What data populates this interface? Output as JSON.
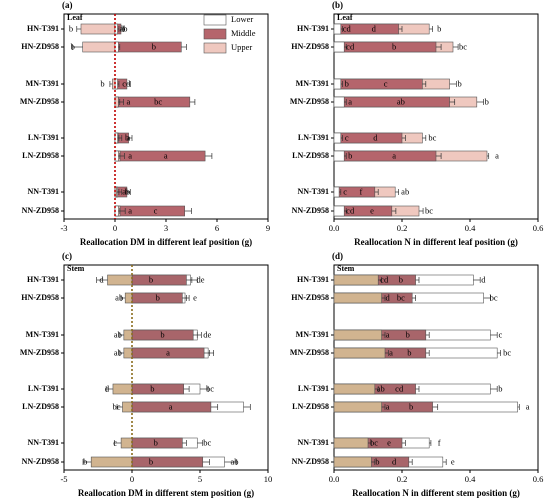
{
  "chart_data": [
    {
      "type": "bar",
      "panel_label": "(a)",
      "corner_label": "Leaf",
      "xlabel": "Reallocation DM in different leaf position (g)",
      "ylabel": "",
      "xlim": [
        -3,
        9
      ],
      "xticks": [
        -3,
        0,
        3,
        6,
        9
      ],
      "categories": [
        "HN-T391",
        "HN-ZD958",
        "MN-T391",
        "MN-ZD958",
        "LN-T391",
        "LN-ZD958",
        "NN-T391",
        "NN-ZD958"
      ],
      "series": [
        {
          "name": "Lower",
          "values": [
            0.15,
            0.2,
            0.15,
            0.2,
            0.15,
            0.2,
            0.15,
            0.2
          ],
          "errors": [
            0.08,
            0.08,
            0.08,
            0.08,
            0.08,
            0.08,
            0.08,
            0.08
          ],
          "letters": [
            "ab",
            "",
            "",
            "",
            "",
            "",
            "",
            ""
          ]
        },
        {
          "name": "Middle",
          "values": [
            0.35,
            3.9,
            0.7,
            4.4,
            0.8,
            5.3,
            0.7,
            4.1
          ],
          "errors": [
            0.15,
            0.3,
            0.2,
            0.3,
            0.2,
            0.4,
            0.2,
            0.4
          ],
          "letters": [
            "b",
            "b",
            "cd",
            "bc",
            "b",
            "a",
            "ab",
            "c"
          ]
        },
        {
          "name": "Upper",
          "values": [
            -2.0,
            -1.9,
            -0.15,
            0.2,
            0.2,
            0.3,
            0.1,
            0.3
          ],
          "errors": [
            0.25,
            0.6,
            0.15,
            0.3,
            0.2,
            0.25,
            0.3,
            0.3
          ],
          "letters": [
            "b",
            "b",
            "b",
            "a",
            "a",
            "a",
            "b",
            "a"
          ]
        }
      ],
      "bar_totals": [
        0.35,
        3.9,
        0.7,
        4.4,
        0.8,
        5.3,
        0.7,
        4.1
      ],
      "total_errors": [
        0.15,
        0.3,
        0.2,
        0.3,
        0.2,
        0.4,
        0.2,
        0.4
      ],
      "total_letters": [
        "b",
        "b",
        "b",
        "bc",
        "b",
        "a",
        "ab",
        "b"
      ],
      "legend": {
        "placement": "top-right",
        "items": [
          "Lower",
          "Middle",
          "Upper"
        ]
      }
    },
    {
      "type": "bar",
      "panel_label": "(b)",
      "corner_label": "Leaf",
      "xlabel": "Reallocation N in different leaf position (g)",
      "ylabel": "",
      "xlim": [
        0,
        0.6
      ],
      "xticks": [
        0.0,
        0.2,
        0.4,
        0.6
      ],
      "categories": [
        "HN-T391",
        "HN-ZD958",
        "MN-T391",
        "MN-ZD958",
        "LN-T391",
        "LN-ZD958",
        "NN-T391",
        "NN-ZD958"
      ],
      "series": [
        {
          "name": "Lower",
          "values": [
            0.02,
            0.03,
            0.02,
            0.03,
            0.02,
            0.03,
            0.015,
            0.03
          ],
          "errors": [
            0.005,
            0.006,
            0.005,
            0.006,
            0.005,
            0.006,
            0.005,
            0.006
          ],
          "letters": [
            "cd",
            "cd",
            "b",
            "a",
            "c",
            "b",
            "c",
            "cd"
          ]
        },
        {
          "name": "Middle",
          "values": [
            0.19,
            0.3,
            0.26,
            0.34,
            0.2,
            0.3,
            0.12,
            0.17
          ],
          "errors": [
            0.01,
            0.015,
            0.01,
            0.015,
            0.01,
            0.015,
            0.01,
            0.012
          ],
          "letters": [
            "d",
            "b",
            "c",
            "ab",
            "d",
            "a",
            "f",
            "e"
          ]
        },
        {
          "name": "Upper",
          "values": [
            0.28,
            0.35,
            0.34,
            0.42,
            0.26,
            0.45,
            0.18,
            0.25
          ],
          "errors": [
            0.01,
            0.015,
            0.02,
            0.02,
            0.01,
            0.005,
            0.01,
            0.012
          ],
          "letters": [
            "b",
            "bc",
            "b",
            "b",
            "bc",
            "a",
            "ab",
            "bc"
          ]
        }
      ],
      "legend": {
        "placement": "none",
        "items": []
      }
    },
    {
      "type": "bar",
      "panel_label": "(c)",
      "corner_label": "Stem",
      "xlabel": "Reallocation DM in different stem position (g)",
      "ylabel": "",
      "xlim": [
        -5,
        10
      ],
      "xticks": [
        -5,
        0,
        5,
        10
      ],
      "categories": [
        "HN-T391",
        "HN-ZD958",
        "MN-T391",
        "MN-ZD958",
        "LN-T391",
        "LN-ZD958",
        "NN-T391",
        "NN-ZD958"
      ],
      "series": [
        {
          "name": "Lower",
          "values": [
            -1.8,
            -0.5,
            -0.6,
            -0.6,
            -1.4,
            -0.7,
            -0.8,
            -3.0
          ],
          "errors": [
            0.8,
            0.3,
            0.3,
            0.3,
            0.5,
            0.4,
            0.5,
            0.6
          ],
          "letters": [
            "d",
            "ab",
            "ab",
            "ab",
            "d",
            "bc",
            "c",
            "b"
          ]
        },
        {
          "name": "Middle",
          "values": [
            4.0,
            3.7,
            4.5,
            5.3,
            3.8,
            5.8,
            3.7,
            5.2
          ],
          "errors": [
            0.4,
            0.3,
            0.3,
            0.4,
            0.4,
            0.5,
            0.3,
            0.5
          ],
          "letters": [
            "b",
            "b",
            "b",
            "a",
            "b",
            "a",
            "b",
            "b"
          ]
        },
        {
          "name": "Upper",
          "values": [
            4.3,
            3.9,
            4.8,
            5.6,
            5.0,
            8.2,
            4.8,
            6.8
          ],
          "errors": [
            0.5,
            0.3,
            0.3,
            0.4,
            0.6,
            0.5,
            0.4,
            0.9
          ],
          "letters": [
            "de",
            "e",
            "de",
            "",
            "bc",
            "",
            "bc",
            "ab"
          ]
        }
      ],
      "legend": {
        "placement": "none",
        "items": []
      }
    },
    {
      "type": "bar",
      "panel_label": "(d)",
      "corner_label": "Stem",
      "xlabel": "Reallocation N in different stem position (g)",
      "ylabel": "",
      "xlim": [
        0,
        0.6
      ],
      "xticks": [
        0.0,
        0.2,
        0.4,
        0.6
      ],
      "categories": [
        "HN-T391",
        "HN-ZD958",
        "MN-T391",
        "MN-ZD958",
        "LN-T391",
        "LN-ZD958",
        "NN-T391",
        "NN-ZD958"
      ],
      "series": [
        {
          "name": "Lower",
          "values": [
            0.13,
            0.14,
            0.14,
            0.15,
            0.12,
            0.14,
            0.1,
            0.11
          ],
          "errors": [
            0.01,
            0.01,
            0.01,
            0.01,
            0.01,
            0.01,
            0.01,
            0.01
          ],
          "letters": [
            "cd",
            "d",
            "a",
            "a",
            "ab",
            "a",
            "bc",
            "b"
          ]
        },
        {
          "name": "Middle",
          "values": [
            0.24,
            0.23,
            0.27,
            0.27,
            0.24,
            0.29,
            0.2,
            0.22
          ],
          "errors": [
            0.01,
            0.01,
            0.01,
            0.01,
            0.01,
            0.015,
            0.01,
            0.01
          ],
          "letters": [
            "b",
            "bc",
            "b",
            "b",
            "cd",
            "b",
            "e",
            "d"
          ]
        },
        {
          "name": "Upper",
          "values": [
            0.41,
            0.44,
            0.46,
            0.48,
            0.46,
            0.54,
            0.28,
            0.32
          ],
          "errors": [
            0.02,
            0.02,
            0.02,
            0.01,
            0.02,
            0.005,
            0.005,
            0.01
          ],
          "letters": [
            "d",
            "bc",
            "c",
            "bc",
            "b",
            "a",
            "f",
            "e"
          ]
        }
      ],
      "legend": {
        "placement": "none",
        "items": []
      }
    }
  ],
  "colors": {
    "lower": "#ffffff",
    "middle": "#b5656c",
    "upper": "#efc8bf",
    "stem_lower": "#d1b490",
    "stem_middle": "#a8656a",
    "stem_upper": "#ffffff",
    "zero_line": "#c00000",
    "stem_zero_line": "#8b6d1e",
    "edge": "#555555",
    "text": "#000000"
  }
}
